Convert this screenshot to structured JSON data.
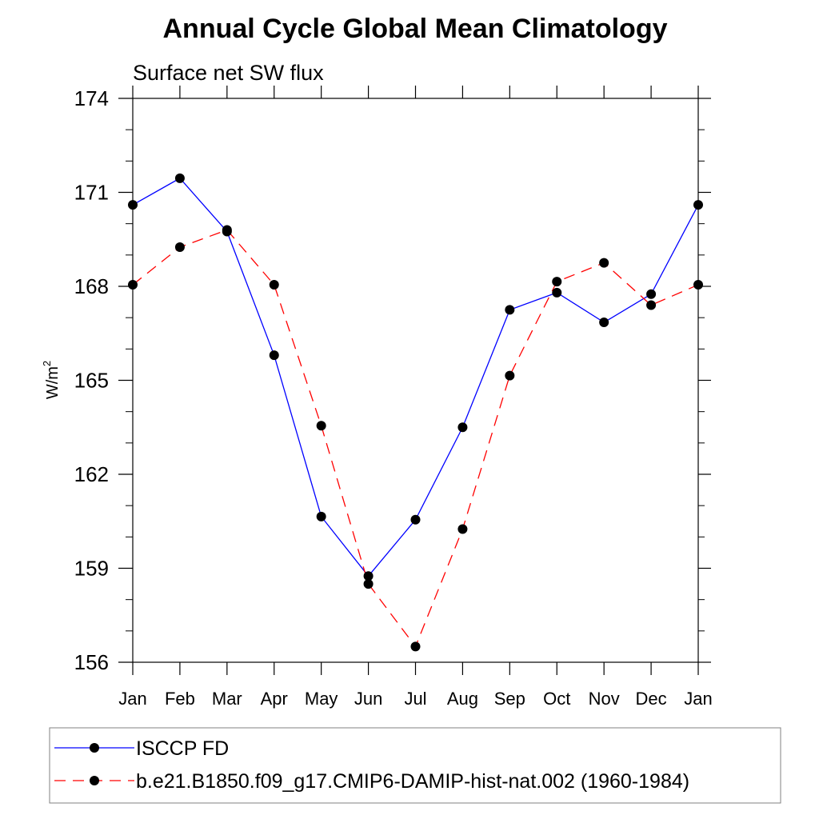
{
  "chart_data": {
    "type": "line",
    "title": "Annual Cycle Global Mean Climatology",
    "subtitle": "Surface net SW flux",
    "xlabel": "",
    "ylabel": "W/m",
    "ylabel_superscript": "2",
    "categories": [
      "Jan",
      "Feb",
      "Mar",
      "Apr",
      "May",
      "Jun",
      "Jul",
      "Aug",
      "Sep",
      "Oct",
      "Nov",
      "Dec",
      "Jan"
    ],
    "ylim": [
      156,
      174
    ],
    "yticks": [
      "174",
      "171",
      "168",
      "165",
      "162",
      "159",
      "156"
    ],
    "grid": false,
    "legend_position": "bottom",
    "series": [
      {
        "name": "ISCCP FD",
        "color": "#0000ff",
        "line_style": "solid",
        "marker": "filled-circle",
        "values": [
          170.6,
          171.45,
          169.75,
          165.8,
          160.65,
          158.75,
          160.55,
          163.5,
          167.25,
          167.8,
          166.85,
          167.75,
          170.6
        ]
      },
      {
        "name": "b.e21.B1850.f09_g17.CMIP6-DAMIP-hist-nat.002 (1960-1984)",
        "color": "#ff0000",
        "line_style": "dashed",
        "marker": "filled-circle",
        "values": [
          168.05,
          169.25,
          169.8,
          168.05,
          163.55,
          158.5,
          156.5,
          160.25,
          165.15,
          168.15,
          168.75,
          167.4,
          168.05
        ]
      }
    ]
  }
}
